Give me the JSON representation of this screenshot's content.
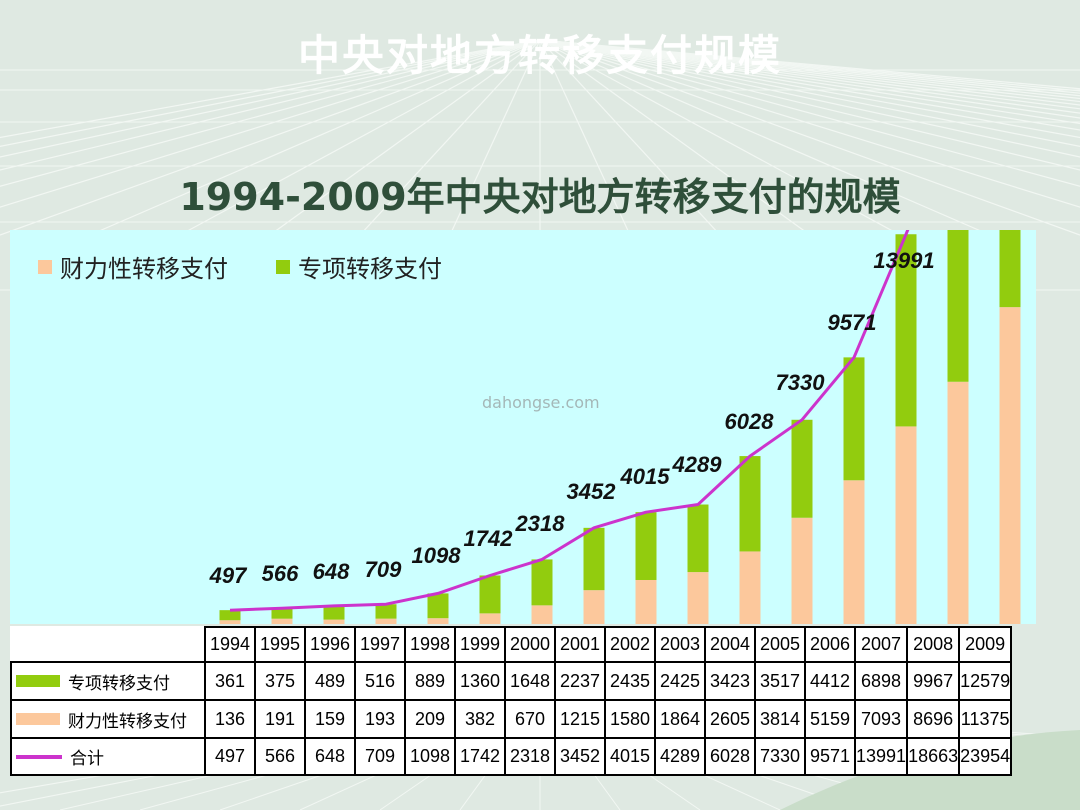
{
  "slide_title": "中央对地方转移支付规模",
  "watermark": "dahongse.com",
  "colors": {
    "background": "#dfe9e2",
    "plot_bg": "#ccffff",
    "general": "#fcc89c",
    "special": "#92cc0e",
    "total_line": "#cc33cc"
  },
  "chart_data": {
    "type": "bar",
    "stacked": true,
    "title": "1994-2009年中央对地方转移支付的规模",
    "categories": [
      "1994",
      "1995",
      "1996",
      "1997",
      "1998",
      "1999",
      "2000",
      "2001",
      "2002",
      "2003",
      "2004",
      "2005",
      "2006",
      "2007",
      "2008",
      "2009"
    ],
    "series": [
      {
        "name": "财力性转移支付",
        "values": [
          136,
          191,
          159,
          193,
          209,
          382,
          670,
          1215,
          1580,
          1864,
          2605,
          3814,
          5159,
          7093,
          8696,
          11375
        ]
      },
      {
        "name": "专项转移支付",
        "values": [
          361,
          375,
          489,
          516,
          889,
          1360,
          1648,
          2237,
          2435,
          2425,
          3423,
          3517,
          4412,
          6898,
          9967,
          12579
        ]
      }
    ],
    "line": {
      "name": "合计",
      "values": [
        497,
        566,
        648,
        709,
        1098,
        1742,
        2318,
        3452,
        4015,
        4289,
        6028,
        7330,
        9571,
        13991,
        18663,
        23954
      ]
    },
    "data_labels": [
      "497",
      "566",
      "648",
      "709",
      "1098",
      "1742",
      "2318",
      "3452",
      "4015",
      "4289",
      "6028",
      "7330",
      "9571",
      "13991"
    ],
    "y_visible_max": 14000,
    "legend_position": "top-left",
    "table": {
      "header_cells": [
        "1994",
        "1995",
        "1996",
        "1997",
        "1998",
        "1999",
        "2000",
        "2001",
        "2002",
        "2003",
        "2004",
        "2005",
        "2006",
        "2007",
        "2008",
        "2009"
      ],
      "rows": [
        {
          "label": "专项转移支付",
          "cells": [
            "361",
            "375",
            "489",
            "516",
            "889",
            "1360",
            "1648",
            "2237",
            "2435",
            "2425",
            "3423",
            "3517",
            "4412",
            "6898",
            "9967",
            "12579"
          ]
        },
        {
          "label": "财力性转移支付",
          "cells": [
            "136",
            "191",
            "159",
            "193",
            "209",
            "382",
            "670",
            "1215",
            "1580",
            "1864",
            "2605",
            "3814",
            "5159",
            "7093",
            "8696",
            "11375"
          ]
        },
        {
          "label": "合计",
          "cells": [
            "497",
            "566",
            "648",
            "709",
            "1098",
            "1742",
            "2318",
            "3452",
            "4015",
            "4289",
            "6028",
            "7330",
            "9571",
            "13991",
            "18663",
            "23954"
          ]
        }
      ]
    }
  }
}
